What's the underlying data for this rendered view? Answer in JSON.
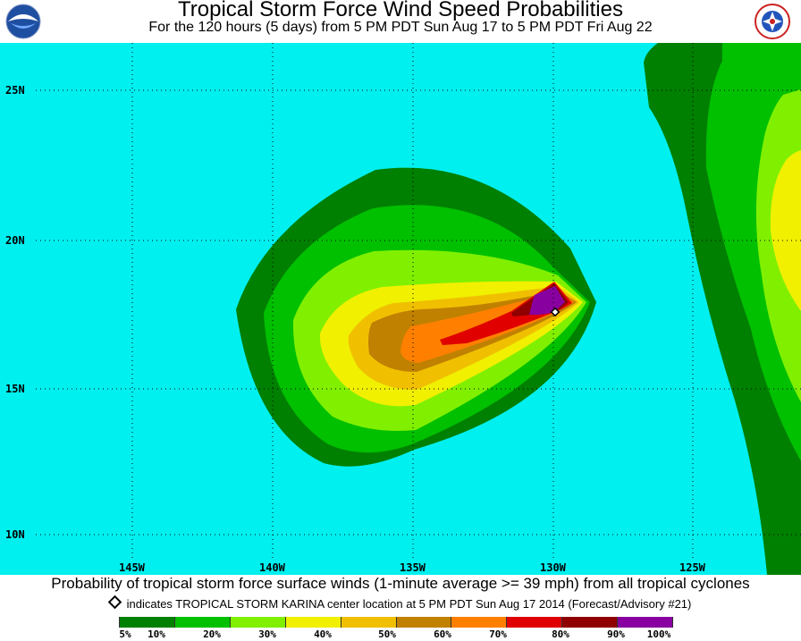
{
  "header": {
    "title": "Tropical Storm Force Wind Speed Probabilities",
    "subtitle": "For the 120 hours (5 days) from 5 PM PDT Sun Aug 17 to 5 PM PDT Fri Aug 22"
  },
  "map": {
    "ocean_color": "#00f0f0",
    "longitude_labels": [
      "145W",
      "140W",
      "135W",
      "130W",
      "125W"
    ],
    "latitude_labels": [
      "25N",
      "20N",
      "15N",
      "10N"
    ],
    "storm_marker": "diamond-icon"
  },
  "footer": {
    "caption": "Probability of tropical storm force surface winds (1-minute average >= 39 mph) from all tropical cyclones",
    "note": "indicates TROPICAL STORM KARINA center location at 5 PM PDT Sun Aug 17 2014 (Forecast/Advisory #21)"
  },
  "legend": {
    "colors": [
      "#008000",
      "#00c000",
      "#80f000",
      "#f0f000",
      "#f0c000",
      "#c08000",
      "#ff8000",
      "#e00000",
      "#900000",
      "#8800a0"
    ],
    "labels": [
      "5%",
      "10%",
      "20%",
      "30%",
      "40%",
      "50%",
      "60%",
      "70%",
      "80%",
      "90%",
      "100%"
    ]
  }
}
